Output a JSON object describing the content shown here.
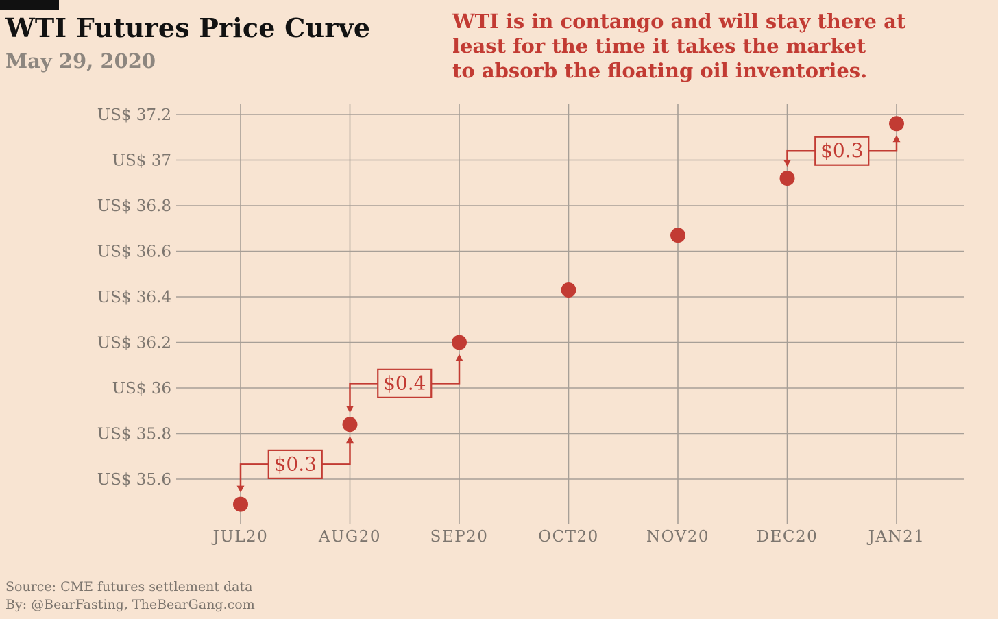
{
  "header": {
    "title": "WTI Futures Price Curve",
    "subtitle": "May 29, 2020",
    "note": "WTI is in contango and will stay there at\nleast for the time it takes the market\nto absorb the floating oil inventories."
  },
  "footer": {
    "source": "Source: CME futures settlement data",
    "byline": "By: @BearFasting, TheBearGang.com"
  },
  "colors": {
    "background": "#f8e4d2",
    "accent_red": "#c23b33",
    "grid": "#a79f97",
    "axis_text": "#7d766f",
    "title_text": "#121212",
    "muted_text": "#8d867f"
  },
  "chart_data": {
    "type": "scatter",
    "title": "WTI Futures Price Curve",
    "subtitle": "May 29, 2020",
    "xlabel": "",
    "ylabel": "US$",
    "grid": true,
    "legend": "none",
    "categories": [
      "JUL20",
      "AUG20",
      "SEP20",
      "OCT20",
      "NOV20",
      "DEC20",
      "JAN21"
    ],
    "values": [
      35.49,
      35.84,
      36.2,
      36.43,
      36.67,
      36.92,
      37.16
    ],
    "ylim": [
      35.4,
      37.3
    ],
    "y_ticks": [
      {
        "value": 37.2,
        "label": "US$ 37.2"
      },
      {
        "value": 37.0,
        "label": "US$ 37"
      },
      {
        "value": 36.8,
        "label": "US$ 36.8"
      },
      {
        "value": 36.6,
        "label": "US$ 36.6"
      },
      {
        "value": 36.4,
        "label": "US$ 36.4"
      },
      {
        "value": 36.2,
        "label": "US$ 36.2"
      },
      {
        "value": 36.0,
        "label": "US$ 36"
      },
      {
        "value": 35.8,
        "label": "US$ 35.8"
      },
      {
        "value": 35.6,
        "label": "US$ 35.6"
      }
    ],
    "marker": {
      "shape": "circle",
      "radius": 11,
      "color": "#c23b33"
    },
    "annotations": [
      {
        "label": "$0.3",
        "from": "JUL20",
        "to": "AUG20"
      },
      {
        "label": "$0.4",
        "from": "AUG20",
        "to": "SEP20"
      },
      {
        "label": "$0.3",
        "from": "DEC20",
        "to": "JAN21"
      }
    ]
  }
}
